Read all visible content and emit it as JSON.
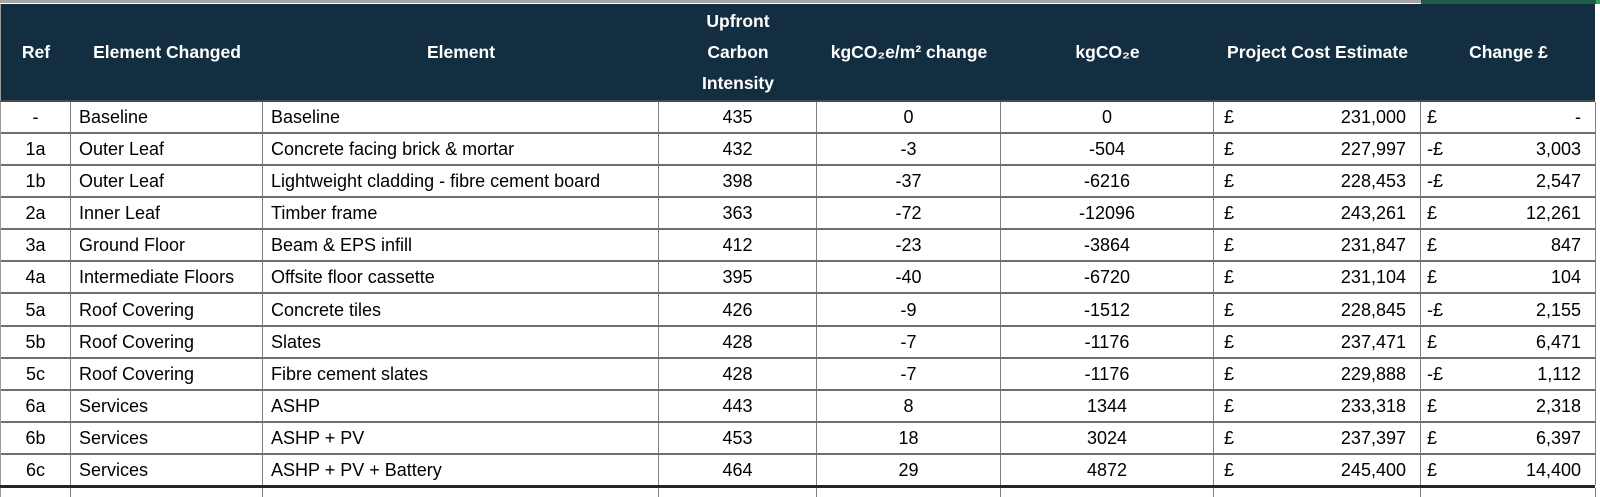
{
  "colors": {
    "header_bg": "#132e41",
    "header_text": "#ffffff",
    "grid_line": "#6e6e6e",
    "thick_bottom": "#262626",
    "top_strip_gray": "#a6a6a6",
    "top_strip_green": "#1e5c45",
    "row_bg": "#ffffff",
    "text": "#000000"
  },
  "table": {
    "headers": [
      "Ref",
      "Element Changed",
      "Element",
      "Upfront Carbon Intensity",
      "kgCO₂e/m² change",
      "kgCO₂e",
      "Project Cost Estimate",
      "Change £"
    ],
    "rows": [
      {
        "ref": "-",
        "element_changed": "Baseline",
        "element": "Baseline",
        "upfront": "435",
        "kg_change": "0",
        "kgco2e": "0",
        "cost_currency": "£",
        "cost_value": "231,000",
        "change_currency": "£",
        "change_value": "-"
      },
      {
        "ref": "1a",
        "element_changed": "Outer Leaf",
        "element": "Concrete facing brick & mortar",
        "upfront": "432",
        "kg_change": "-3",
        "kgco2e": "-504",
        "cost_currency": "£",
        "cost_value": "227,997",
        "change_currency": "-£",
        "change_value": "3,003"
      },
      {
        "ref": "1b",
        "element_changed": "Outer Leaf",
        "element": "Lightweight cladding - fibre cement board",
        "upfront": "398",
        "kg_change": "-37",
        "kgco2e": "-6216",
        "cost_currency": "£",
        "cost_value": "228,453",
        "change_currency": "-£",
        "change_value": "2,547"
      },
      {
        "ref": "2a",
        "element_changed": "Inner Leaf",
        "element": "Timber frame",
        "upfront": "363",
        "kg_change": "-72",
        "kgco2e": "-12096",
        "cost_currency": "£",
        "cost_value": "243,261",
        "change_currency": "£",
        "change_value": "12,261"
      },
      {
        "ref": "3a",
        "element_changed": "Ground Floor",
        "element": "Beam & EPS infill",
        "upfront": "412",
        "kg_change": "-23",
        "kgco2e": "-3864",
        "cost_currency": "£",
        "cost_value": "231,847",
        "change_currency": "£",
        "change_value": "847"
      },
      {
        "ref": "4a",
        "element_changed": "Intermediate Floors",
        "element": "Offsite floor cassette",
        "upfront": "395",
        "kg_change": "-40",
        "kgco2e": "-6720",
        "cost_currency": "£",
        "cost_value": "231,104",
        "change_currency": "£",
        "change_value": "104"
      },
      {
        "ref": "5a",
        "element_changed": "Roof Covering",
        "element": "Concrete tiles",
        "upfront": "426",
        "kg_change": "-9",
        "kgco2e": "-1512",
        "cost_currency": "£",
        "cost_value": "228,845",
        "change_currency": "-£",
        "change_value": "2,155"
      },
      {
        "ref": "5b",
        "element_changed": "Roof Covering",
        "element": "Slates",
        "upfront": "428",
        "kg_change": "-7",
        "kgco2e": "-1176",
        "cost_currency": "£",
        "cost_value": "237,471",
        "change_currency": "£",
        "change_value": "6,471"
      },
      {
        "ref": "5c",
        "element_changed": "Roof Covering",
        "element": "Fibre cement slates",
        "upfront": "428",
        "kg_change": "-7",
        "kgco2e": "-1176",
        "cost_currency": "£",
        "cost_value": "229,888",
        "change_currency": "-£",
        "change_value": "1,112"
      },
      {
        "ref": "6a",
        "element_changed": "Services",
        "element": "ASHP",
        "upfront": "443",
        "kg_change": "8",
        "kgco2e": "1344",
        "cost_currency": "£",
        "cost_value": "233,318",
        "change_currency": "£",
        "change_value": "2,318"
      },
      {
        "ref": "6b",
        "element_changed": "Services",
        "element": "ASHP + PV",
        "upfront": "453",
        "kg_change": "18",
        "kgco2e": "3024",
        "cost_currency": "£",
        "cost_value": "237,397",
        "change_currency": "£",
        "change_value": "6,397"
      },
      {
        "ref": "6c",
        "element_changed": "Services",
        "element": "ASHP + PV + Battery",
        "upfront": "464",
        "kg_change": "29",
        "kgco2e": "4872",
        "cost_currency": "£",
        "cost_value": "245,400",
        "change_currency": "£",
        "change_value": "14,400"
      }
    ]
  }
}
